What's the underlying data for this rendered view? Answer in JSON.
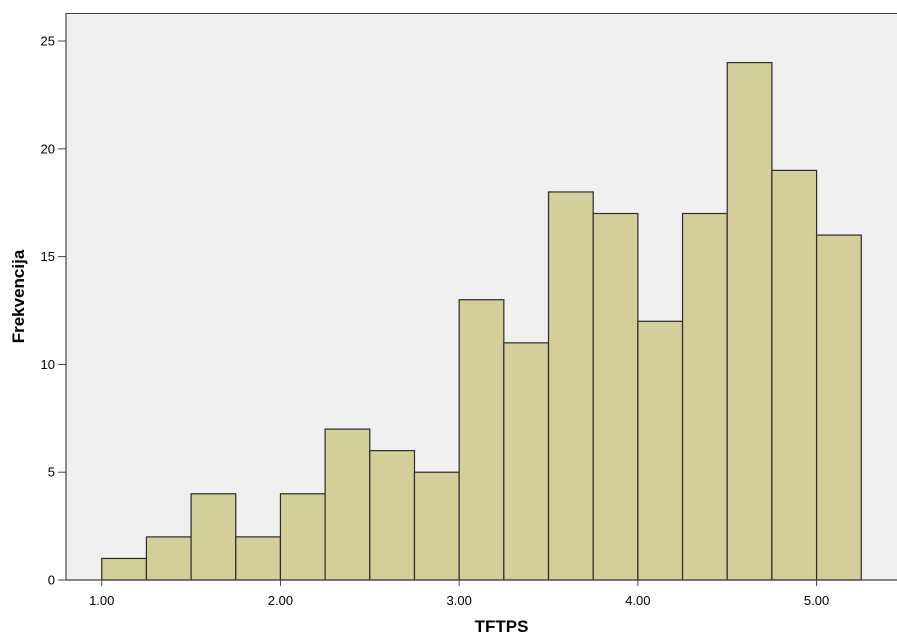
{
  "chart_data": {
    "type": "bar",
    "subtype": "histogram",
    "xlabel": "TFTPS",
    "ylabel": "Frekvencija",
    "bin_width": 0.25,
    "bins": [
      {
        "start": 1.0,
        "end": 1.25,
        "count": 1
      },
      {
        "start": 1.25,
        "end": 1.5,
        "count": 2
      },
      {
        "start": 1.5,
        "end": 1.75,
        "count": 4
      },
      {
        "start": 1.75,
        "end": 2.0,
        "count": 2
      },
      {
        "start": 2.0,
        "end": 2.25,
        "count": 4
      },
      {
        "start": 2.25,
        "end": 2.5,
        "count": 7
      },
      {
        "start": 2.5,
        "end": 2.75,
        "count": 6
      },
      {
        "start": 2.75,
        "end": 3.0,
        "count": 5
      },
      {
        "start": 3.0,
        "end": 3.25,
        "count": 13
      },
      {
        "start": 3.25,
        "end": 3.5,
        "count": 11
      },
      {
        "start": 3.5,
        "end": 3.75,
        "count": 18
      },
      {
        "start": 3.75,
        "end": 4.0,
        "count": 17
      },
      {
        "start": 4.0,
        "end": 4.25,
        "count": 12
      },
      {
        "start": 4.25,
        "end": 4.5,
        "count": 17
      },
      {
        "start": 4.5,
        "end": 4.75,
        "count": 24
      },
      {
        "start": 4.75,
        "end": 5.0,
        "count": 19
      },
      {
        "start": 5.0,
        "end": 5.25,
        "count": 16
      }
    ],
    "x_ticks": [
      "1.00",
      "2.00",
      "3.00",
      "4.00",
      "5.00"
    ],
    "y_ticks": [
      "0",
      "5",
      "10",
      "15",
      "20",
      "25"
    ],
    "xlim": [
      0.8,
      5.45
    ],
    "ylim": [
      0,
      26.3
    ],
    "grid": false,
    "legend": "none",
    "colors": {
      "bar_fill": "#d4cf9a",
      "bar_stroke": "#2b2b2b",
      "plot_background": "#f0f0f0",
      "axis": "#444444"
    }
  }
}
